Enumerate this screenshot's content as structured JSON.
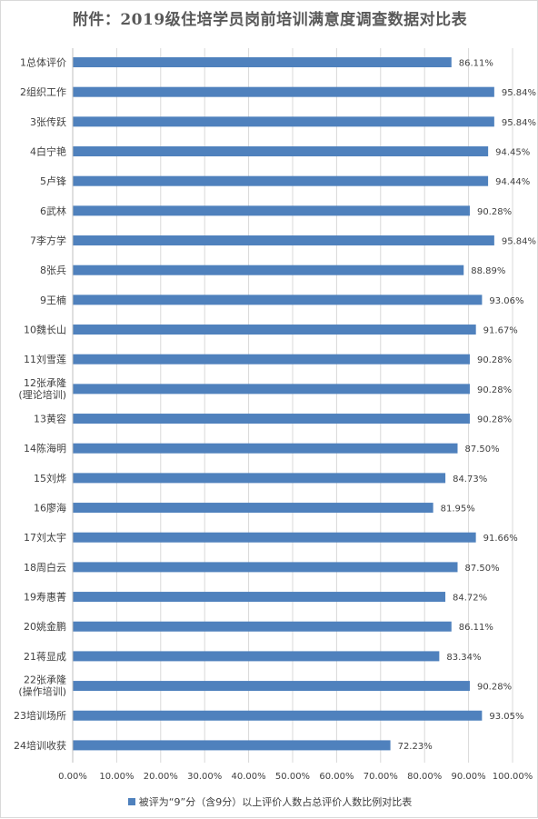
{
  "chart_data": {
    "type": "bar",
    "orientation": "horizontal",
    "title": "附件：2019级住培学员岗前培训满意度调查数据对比表",
    "categories": [
      "1总体评价",
      "2组织工作",
      "3张传跃",
      "4白宁艳",
      "5卢锋",
      "6武林",
      "7李方学",
      "8张兵",
      "9王楠",
      "10魏长山",
      "11刘雪莲",
      "12张承隆\n(理论培训)",
      "13黄容",
      "14陈海明",
      "15刘烨",
      "16廖海",
      "17刘太宇",
      "18周白云",
      "19寿惠菁",
      "20姚金鹏",
      "21蒋显成",
      "22张承隆\n(操作培训)",
      "23培训场所",
      "24培训收获"
    ],
    "series": [
      {
        "name": "被评为“9”分（含9分）以上评价人数占总评价人数比例对比表",
        "color": "#4f81bd",
        "values": [
          86.11,
          95.84,
          95.84,
          94.45,
          94.44,
          90.28,
          95.84,
          88.89,
          93.06,
          91.67,
          90.28,
          90.28,
          90.28,
          87.5,
          84.73,
          81.95,
          91.66,
          87.5,
          84.72,
          86.11,
          83.34,
          90.28,
          93.05,
          72.23
        ],
        "labels": [
          "86.11%",
          "95.84%",
          "95.84%",
          "94.45%",
          "94.44%",
          "90.28%",
          "95.84%",
          "88.89%",
          "93.06%",
          "91.67%",
          "90.28%",
          "90.28%",
          "90.28%",
          "87.50%",
          "84.73%",
          "81.95%",
          "91.66%",
          "87.50%",
          "84.72%",
          "86.11%",
          "83.34%",
          "90.28%",
          "93.05%",
          "72.23%"
        ]
      }
    ],
    "xlim": [
      0,
      100
    ],
    "xticks": [
      "0.00%",
      "10.00%",
      "20.00%",
      "30.00%",
      "40.00%",
      "50.00%",
      "60.00%",
      "70.00%",
      "80.00%",
      "90.00%",
      "100.00%"
    ],
    "grid": true,
    "legend_position": "bottom"
  }
}
